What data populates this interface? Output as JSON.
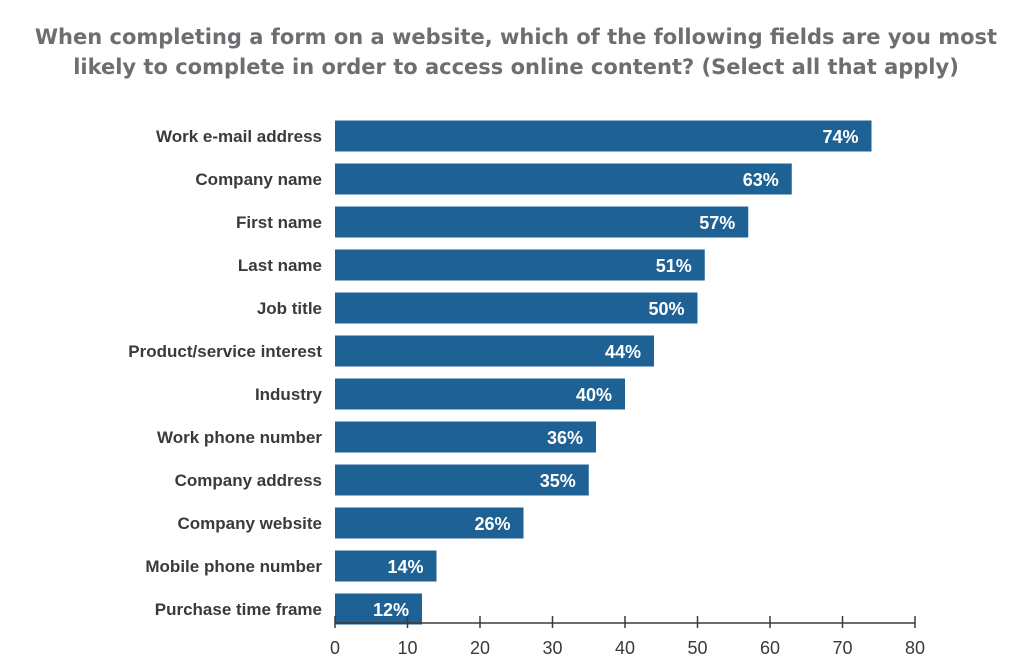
{
  "chart_data": {
    "type": "bar",
    "orientation": "horizontal",
    "title_lines": [
      "When completing a form on a website, which of the following fields are you most",
      "likely to complete in order to access online content? (Select all that apply)"
    ],
    "categories": [
      "Work e-mail address",
      "Company name",
      "First name",
      "Last name",
      "Job title",
      "Product/service interest",
      "Industry",
      "Work phone number",
      "Company address",
      "Company website",
      "Mobile phone number",
      "Purchase time frame"
    ],
    "values": [
      74,
      63,
      57,
      51,
      50,
      44,
      40,
      36,
      35,
      26,
      14,
      12
    ],
    "data_labels": [
      "74%",
      "63%",
      "57%",
      "51%",
      "50%",
      "44%",
      "40%",
      "36%",
      "35%",
      "26%",
      "14%",
      "12%"
    ],
    "x_ticks": [
      "0",
      "10",
      "20",
      "30",
      "40",
      "50",
      "60",
      "70",
      "80"
    ],
    "xlim": [
      0,
      80
    ],
    "grid": false,
    "bar_color": "#1d6195",
    "axis_color": "#3a3a3c"
  }
}
